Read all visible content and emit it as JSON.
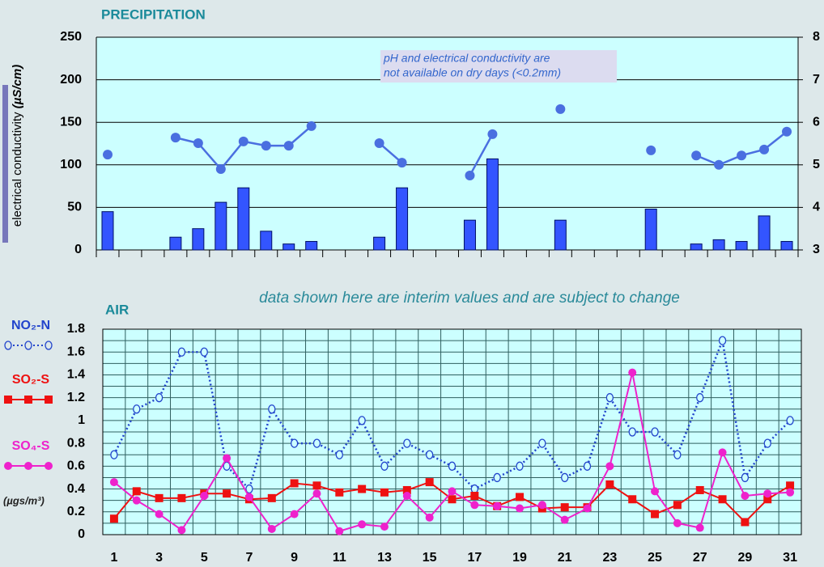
{
  "chart_data": [
    {
      "type": "combo",
      "title": "PRECIPITATION",
      "ylabel": "electrical conductivity",
      "ylabel_unit": "(µS/cm)",
      "annotation": [
        "pH and electrical conductivity are",
        "not available on dry days (<0.2mm)"
      ],
      "ylim": [
        0,
        250
      ],
      "yticks": [
        0,
        50,
        100,
        150,
        200,
        250
      ],
      "y2lim": [
        3,
        8
      ],
      "y2ticks": [
        3,
        4,
        5,
        6,
        7,
        8
      ],
      "grid": true,
      "series": [
        {
          "type": "bar",
          "color": "#3355ff",
          "values": [
            45,
            null,
            null,
            15,
            25,
            56,
            73,
            22,
            7,
            10,
            null,
            null,
            15,
            73,
            null,
            null,
            35,
            107,
            null,
            null,
            35,
            null,
            null,
            null,
            48,
            null,
            7,
            12,
            10,
            40,
            10
          ]
        },
        {
          "type": "line",
          "axis": "y2",
          "color": "#4a6fe0",
          "values": [
            5.24,
            null,
            null,
            5.64,
            5.51,
            4.9,
            5.55,
            5.45,
            5.45,
            5.91,
            null,
            null,
            5.51,
            5.05,
            null,
            null,
            4.75,
            5.72,
            null,
            null,
            6.31,
            null,
            null,
            null,
            5.34,
            null,
            5.22,
            5.0,
            5.22,
            5.36,
            5.78
          ]
        }
      ]
    },
    {
      "type": "line",
      "title": "AIR",
      "subtitle": "data shown here are interim values and are subject to change",
      "unit_label": "(µgs/m³)",
      "legend": "left",
      "grid": true,
      "categories": [
        1,
        null,
        3,
        null,
        5,
        null,
        7,
        null,
        9,
        null,
        11,
        null,
        13,
        null,
        15,
        null,
        17,
        null,
        19,
        null,
        21,
        null,
        23,
        null,
        25,
        null,
        27,
        null,
        29,
        null,
        31
      ],
      "ylim": [
        0,
        1.8
      ],
      "yticks": [
        0,
        0.2,
        0.4,
        0.6,
        0.8,
        1,
        1.2,
        1.4,
        1.6,
        1.8
      ],
      "y_minor_ticks": [
        0.1,
        0.3,
        0.5,
        0.7,
        0.9,
        1.1,
        1.3,
        1.5,
        1.7
      ],
      "series": [
        {
          "name": "NO₂-N",
          "color": "#2244cc",
          "marker": "open-circle",
          "line": "dotted",
          "values": [
            0.7,
            1.1,
            1.2,
            1.6,
            1.6,
            0.6,
            0.4,
            1.1,
            0.8,
            0.8,
            0.7,
            1.0,
            0.6,
            0.8,
            0.7,
            0.6,
            0.4,
            0.5,
            0.6,
            0.8,
            0.5,
            0.6,
            1.2,
            0.9,
            0.9,
            0.7,
            1.2,
            1.7,
            0.5,
            0.8,
            1.0
          ]
        },
        {
          "name": "SO₂-S",
          "color": "#ee1111",
          "marker": "square",
          "line": "solid",
          "values": [
            0.14,
            0.38,
            0.32,
            0.32,
            0.36,
            0.36,
            0.31,
            0.32,
            0.45,
            0.43,
            0.37,
            0.4,
            0.37,
            0.39,
            0.46,
            0.31,
            0.34,
            0.25,
            0.33,
            0.23,
            0.24,
            0.24,
            0.44,
            0.31,
            0.18,
            0.26,
            0.39,
            0.31,
            0.11,
            0.31,
            0.43
          ]
        },
        {
          "name": "SO₄-S",
          "color": "#ee22cc",
          "marker": "circle",
          "line": "solid",
          "values": [
            0.46,
            0.3,
            0.18,
            0.04,
            0.34,
            0.67,
            0.33,
            0.05,
            0.18,
            0.36,
            0.03,
            0.09,
            0.07,
            0.34,
            0.15,
            0.38,
            0.26,
            0.25,
            0.23,
            0.26,
            0.13,
            0.23,
            0.6,
            1.42,
            0.38,
            0.1,
            0.06,
            0.72,
            0.34,
            0.36,
            0.37
          ]
        }
      ]
    }
  ]
}
